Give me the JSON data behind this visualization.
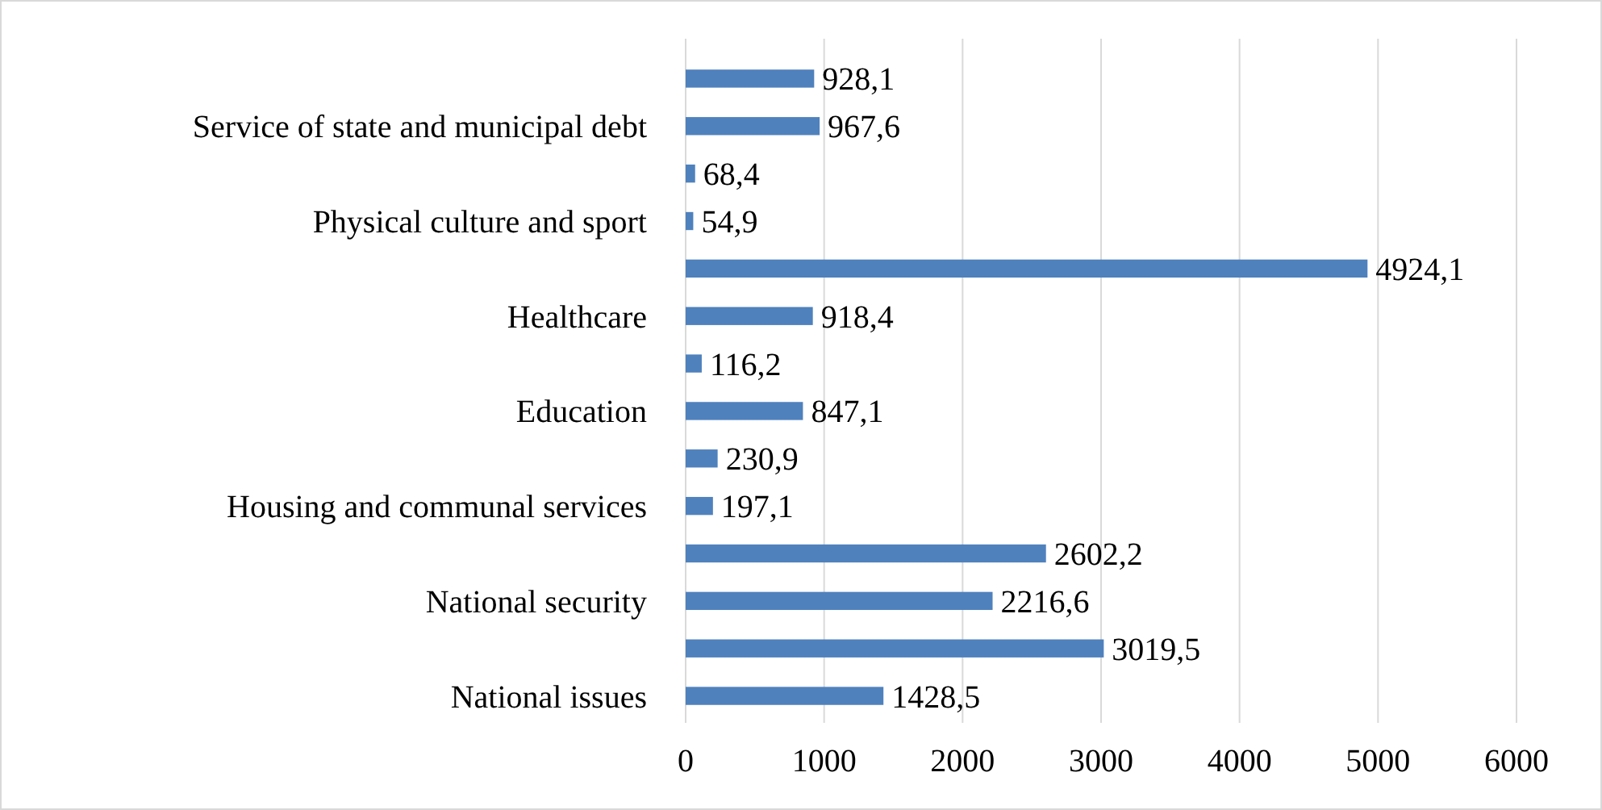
{
  "chart_data": {
    "type": "bar",
    "orientation": "horizontal",
    "categories": [
      null,
      "Service of state and municipal debt",
      null,
      "Physical culture and sport",
      null,
      "Healthcare",
      null,
      "Education",
      null,
      "Housing and communal services",
      null,
      "National security",
      null,
      "National issues"
    ],
    "values": [
      928.1,
      967.6,
      68.4,
      54.9,
      4924.1,
      918.4,
      116.2,
      847.1,
      230.9,
      197.1,
      2602.2,
      2216.6,
      3019.5,
      1428.5
    ],
    "value_labels": [
      "928,1",
      "967,6",
      "68,4",
      "54,9",
      "4924,1",
      "918,4",
      "116,2",
      "847,1",
      "230,9",
      "197,1",
      "2602,2",
      "2216,6",
      "3019,5",
      "1428,5"
    ],
    "color": "#4f81bd",
    "xlim": [
      0,
      6000
    ],
    "xticks": [
      0,
      1000,
      2000,
      3000,
      4000,
      5000,
      6000
    ],
    "grid": "x"
  }
}
